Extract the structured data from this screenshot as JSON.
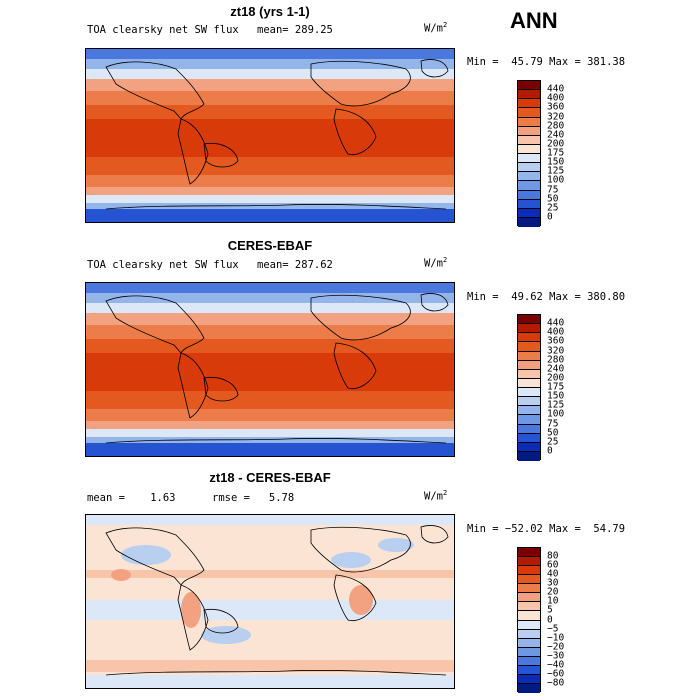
{
  "season": "ANN",
  "units_base": "W/m",
  "units_exp": "2",
  "panels": [
    {
      "title": "zt18 (yrs 1-1)",
      "subtitle_left": "TOA clearsky net SW flux",
      "stat_line": "mean= 289.25",
      "range_text": "Min =  45.79 Max = 381.38",
      "colorbar_labels": [
        "440",
        "400",
        "360",
        "320",
        "280",
        "240",
        "200",
        "175",
        "150",
        "125",
        "100",
        "75",
        "50",
        "25",
        "0"
      ]
    },
    {
      "title": "CERES-EBAF",
      "subtitle_left": "TOA clearsky net SW flux",
      "stat_line": "mean= 287.62",
      "range_text": "Min =  49.62 Max = 380.80",
      "colorbar_labels": [
        "440",
        "400",
        "360",
        "320",
        "280",
        "240",
        "200",
        "175",
        "150",
        "125",
        "100",
        "75",
        "50",
        "25",
        "0"
      ]
    },
    {
      "title": "zt18 - CERES-EBAF",
      "subtitle_left": "mean =    1.63",
      "stat_line": "rmse =   5.78",
      "range_text": "Min = −52.02 Max =  54.79",
      "colorbar_labels": [
        "80",
        "60",
        "40",
        "30",
        "20",
        "10",
        "5",
        "0",
        "−5",
        "−10",
        "−20",
        "−30",
        "−40",
        "−60",
        "−80"
      ]
    }
  ],
  "colors": {
    "abs_scale": [
      "#7a0000",
      "#b31b00",
      "#d83a0a",
      "#e4591f",
      "#ec7d4a",
      "#f3a281",
      "#f8c5aa",
      "#fbe4d3",
      "#dce8f7",
      "#b8cff0",
      "#93b5ea",
      "#6e98e3",
      "#4a78dc",
      "#2553d2",
      "#0b2cb8",
      "#001a80"
    ],
    "diff_scale": [
      "#7a0000",
      "#b31b00",
      "#d83a0a",
      "#e4591f",
      "#ec7d4a",
      "#f3a281",
      "#f8c5aa",
      "#fbe4d3",
      "#dce8f7",
      "#b8cff0",
      "#93b5ea",
      "#6e98e3",
      "#4a78dc",
      "#2553d2",
      "#0b2cb8",
      "#001a80"
    ]
  }
}
